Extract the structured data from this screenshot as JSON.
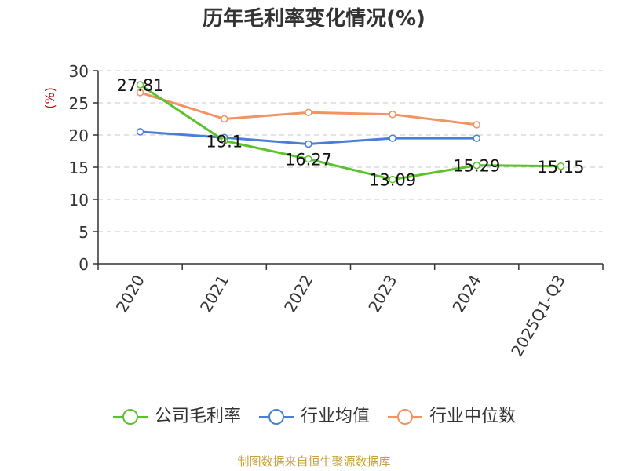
{
  "chart_data": {
    "type": "line",
    "title": "历年毛利率变化情况(%)",
    "ylabel": "(%)",
    "xlabel": "",
    "categories": [
      "2020",
      "2021",
      "2022",
      "2023",
      "2024",
      "2025Q1-Q3"
    ],
    "yticks": [
      0,
      5,
      10,
      15,
      20,
      25,
      30
    ],
    "ylim": [
      0,
      30
    ],
    "grid": true,
    "legend_position": "bottom",
    "series": [
      {
        "name": "公司毛利率",
        "color": "#5cc22b",
        "values": [
          27.81,
          19.1,
          16.27,
          13.09,
          15.29,
          15.15
        ],
        "labels": [
          "27.81",
          "19.1",
          "16.27",
          "13.09",
          "15.29",
          "15.15"
        ]
      },
      {
        "name": "行业均值",
        "color": "#4a7fd4",
        "values": [
          20.5,
          19.6,
          18.6,
          19.5,
          19.5,
          null
        ]
      },
      {
        "name": "行业中位数",
        "color": "#f39262",
        "values": [
          26.6,
          22.5,
          23.5,
          23.2,
          21.6,
          null
        ]
      }
    ]
  },
  "source_note": "制图数据来自恒生聚源数据库",
  "colors": {
    "source_note": "#c8a03c",
    "ylabel": "#cc0000",
    "axis": "#333333",
    "grid": "#c8c8c8"
  }
}
